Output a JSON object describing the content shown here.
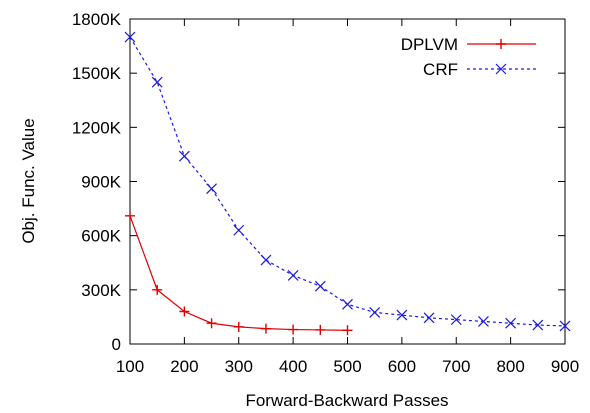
{
  "chart_data": {
    "type": "line",
    "title": "",
    "xlabel": "Forward-Backward Passes",
    "ylabel": "Obj. Func. Value",
    "xlim": [
      100,
      900
    ],
    "ylim": [
      0,
      1800000
    ],
    "x_ticks": [
      100,
      200,
      300,
      400,
      500,
      600,
      700,
      800,
      900
    ],
    "x_tick_labels": [
      "100",
      "200",
      "300",
      "400",
      "500",
      "600",
      "700",
      "800",
      "900"
    ],
    "y_ticks": [
      0,
      300000,
      600000,
      900000,
      1200000,
      1500000,
      1800000
    ],
    "y_tick_labels": [
      "0",
      "300K",
      "600K",
      "900K",
      "1200K",
      "1500K",
      "1800K"
    ],
    "grid": false,
    "legend_position": "top-right",
    "series": [
      {
        "name": "DPLVM",
        "color": "#e00000",
        "line_style": "solid",
        "marker": "plus",
        "x": [
          100,
          150,
          200,
          250,
          300,
          350,
          400,
          450,
          500
        ],
        "values": [
          710000,
          300000,
          180000,
          115000,
          95000,
          85000,
          80000,
          78000,
          76000
        ]
      },
      {
        "name": "CRF",
        "color": "#1a1ae6",
        "line_style": "dashed",
        "marker": "x",
        "x": [
          100,
          150,
          200,
          250,
          300,
          350,
          400,
          450,
          500,
          550,
          600,
          650,
          700,
          750,
          800,
          850,
          900
        ],
        "values": [
          1700000,
          1450000,
          1040000,
          860000,
          630000,
          465000,
          380000,
          320000,
          220000,
          175000,
          160000,
          145000,
          135000,
          125000,
          115000,
          105000,
          100000
        ]
      }
    ]
  }
}
